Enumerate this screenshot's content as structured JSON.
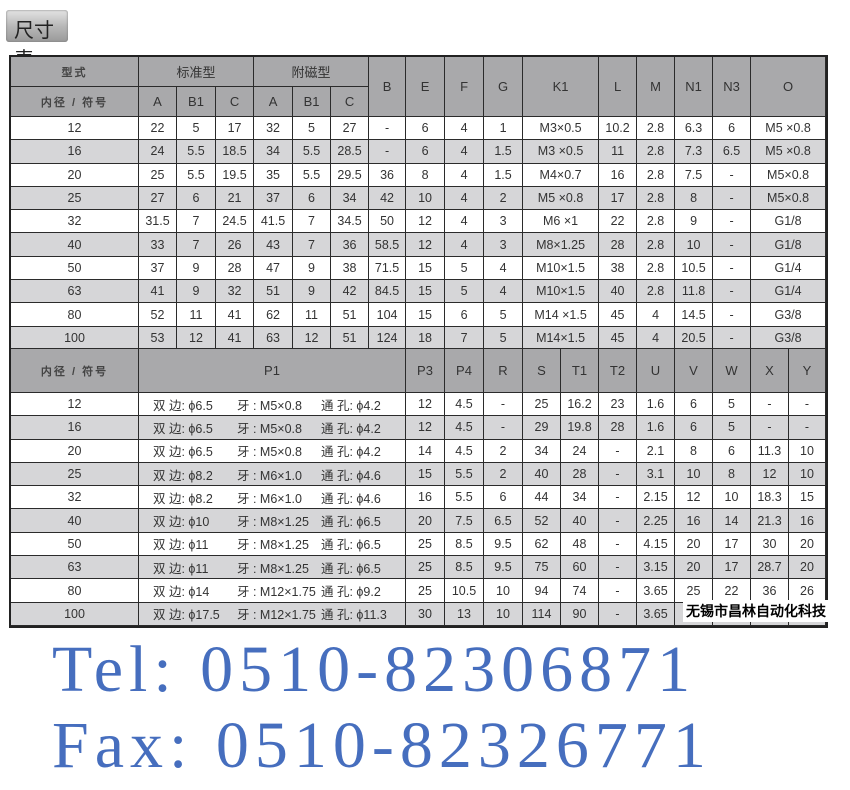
{
  "title": "尺寸表",
  "table1": {
    "header_row1": {
      "type_label": "型式",
      "standard": "标准型",
      "magnetic": "附磁型",
      "B": "B",
      "E": "E",
      "F": "F",
      "G": "G",
      "K1": "K1",
      "L": "L",
      "M": "M",
      "N1": "N1",
      "N3": "N3",
      "O": "O"
    },
    "header_row2": {
      "bore_label": "内径 / 符号",
      "cols": [
        "A",
        "B1",
        "C",
        "A",
        "B1",
        "C"
      ]
    },
    "rows": [
      [
        "12",
        "22",
        "5",
        "17",
        "32",
        "5",
        "27",
        "-",
        "6",
        "4",
        "1",
        "M3×0.5",
        "10.2",
        "2.8",
        "6.3",
        "6",
        "M5 ×0.8"
      ],
      [
        "16",
        "24",
        "5.5",
        "18.5",
        "34",
        "5.5",
        "28.5",
        "-",
        "6",
        "4",
        "1.5",
        "M3 ×0.5",
        "11",
        "2.8",
        "7.3",
        "6.5",
        "M5 ×0.8"
      ],
      [
        "20",
        "25",
        "5.5",
        "19.5",
        "35",
        "5.5",
        "29.5",
        "36",
        "8",
        "4",
        "1.5",
        "M4×0.7",
        "16",
        "2.8",
        "7.5",
        "-",
        "M5×0.8"
      ],
      [
        "25",
        "27",
        "6",
        "21",
        "37",
        "6",
        "34",
        "42",
        "10",
        "4",
        "2",
        "M5 ×0.8",
        "17",
        "2.8",
        "8",
        "-",
        "M5×0.8"
      ],
      [
        "32",
        "31.5",
        "7",
        "24.5",
        "41.5",
        "7",
        "34.5",
        "50",
        "12",
        "4",
        "3",
        "M6 ×1",
        "22",
        "2.8",
        "9",
        "-",
        "G1/8"
      ],
      [
        "40",
        "33",
        "7",
        "26",
        "43",
        "7",
        "36",
        "58.5",
        "12",
        "4",
        "3",
        "M8×1.25",
        "28",
        "2.8",
        "10",
        "-",
        "G1/8"
      ],
      [
        "50",
        "37",
        "9",
        "28",
        "47",
        "9",
        "38",
        "71.5",
        "15",
        "5",
        "4",
        "M10×1.5",
        "38",
        "2.8",
        "10.5",
        "-",
        "G1/4"
      ],
      [
        "63",
        "41",
        "9",
        "32",
        "51",
        "9",
        "42",
        "84.5",
        "15",
        "5",
        "4",
        "M10×1.5",
        "40",
        "2.8",
        "11.8",
        "-",
        "G1/4"
      ],
      [
        "80",
        "52",
        "11",
        "41",
        "62",
        "11",
        "51",
        "104",
        "15",
        "6",
        "5",
        "M14 ×1.5",
        "45",
        "4",
        "14.5",
        "-",
        "G3/8"
      ],
      [
        "100",
        "53",
        "12",
        "41",
        "63",
        "12",
        "51",
        "124",
        "18",
        "7",
        "5",
        "M14×1.5",
        "45",
        "4",
        "20.5",
        "-",
        "G3/8"
      ]
    ]
  },
  "table2": {
    "headers": [
      "内径 / 符号",
      "P1",
      "P3",
      "P4",
      "R",
      "S",
      "T1",
      "T2",
      "U",
      "V",
      "W",
      "X",
      "Y"
    ],
    "rows": [
      {
        "bore": "12",
        "p1": [
          "双 边: ϕ6.5",
          "牙 : M5×0.8",
          "通 孔: ϕ4.2"
        ],
        "vals": [
          "12",
          "4.5",
          "-",
          "25",
          "16.2",
          "23",
          "1.6",
          "6",
          "5",
          "-",
          "-"
        ]
      },
      {
        "bore": "16",
        "p1": [
          "双 边: ϕ6.5",
          "牙 : M5×0.8",
          "通 孔: ϕ4.2"
        ],
        "vals": [
          "12",
          "4.5",
          "-",
          "29",
          "19.8",
          "28",
          "1.6",
          "6",
          "5",
          "-",
          "-"
        ]
      },
      {
        "bore": "20",
        "p1": [
          "双 边: ϕ6.5",
          "牙 : M5×0.8",
          "通 孔: ϕ4.2"
        ],
        "vals": [
          "14",
          "4.5",
          "2",
          "34",
          "24",
          "-",
          "2.1",
          "8",
          "6",
          "11.3",
          "10"
        ]
      },
      {
        "bore": "25",
        "p1": [
          "双 边: ϕ8.2",
          "牙 : M6×1.0",
          "通 孔: ϕ4.6"
        ],
        "vals": [
          "15",
          "5.5",
          "2",
          "40",
          "28",
          "-",
          "3.1",
          "10",
          "8",
          "12",
          "10"
        ]
      },
      {
        "bore": "32",
        "p1": [
          "双 边: ϕ8.2",
          "牙 : M6×1.0",
          "通 孔: ϕ4.6"
        ],
        "vals": [
          "16",
          "5.5",
          "6",
          "44",
          "34",
          "-",
          "2.15",
          "12",
          "10",
          "18.3",
          "15"
        ]
      },
      {
        "bore": "40",
        "p1": [
          "双 边: ϕ10",
          "牙 : M8×1.25",
          "通 孔: ϕ6.5"
        ],
        "vals": [
          "20",
          "7.5",
          "6.5",
          "52",
          "40",
          "-",
          "2.25",
          "16",
          "14",
          "21.3",
          "16"
        ]
      },
      {
        "bore": "50",
        "p1": [
          "双 边: ϕ11",
          "牙 : M8×1.25",
          "通 孔: ϕ6.5"
        ],
        "vals": [
          "25",
          "8.5",
          "9.5",
          "62",
          "48",
          "-",
          "4.15",
          "20",
          "17",
          "30",
          "20"
        ]
      },
      {
        "bore": "63",
        "p1": [
          "双 边: ϕ11",
          "牙 : M8×1.25",
          "通 孔: ϕ6.5"
        ],
        "vals": [
          "25",
          "8.5",
          "9.5",
          "75",
          "60",
          "-",
          "3.15",
          "20",
          "17",
          "28.7",
          "20"
        ]
      },
      {
        "bore": "80",
        "p1": [
          "双 边: ϕ14",
          "牙 : M12×1.75",
          "通 孔: ϕ9.2"
        ],
        "vals": [
          "25",
          "10.5",
          "10",
          "94",
          "74",
          "-",
          "3.65",
          "25",
          "22",
          "36",
          "26"
        ]
      },
      {
        "bore": "100",
        "p1": [
          "双 边: ϕ17.5",
          "牙 : M12×1.75",
          "通 孔: ϕ11.3"
        ],
        "vals": [
          "30",
          "13",
          "10",
          "114",
          "90",
          "-",
          "3.65",
          "",
          "",
          "",
          ""
        ]
      }
    ]
  },
  "watermarks": {
    "tel": "Tel: 0510-82306871",
    "fax": "Fax: 0510-82326771"
  },
  "company": "无锡市昌林自动化科技",
  "colors": {
    "header_bg": "#a9a9ab",
    "alt_row_bg": "#d6d6d8",
    "watermark": "#466ebe"
  }
}
